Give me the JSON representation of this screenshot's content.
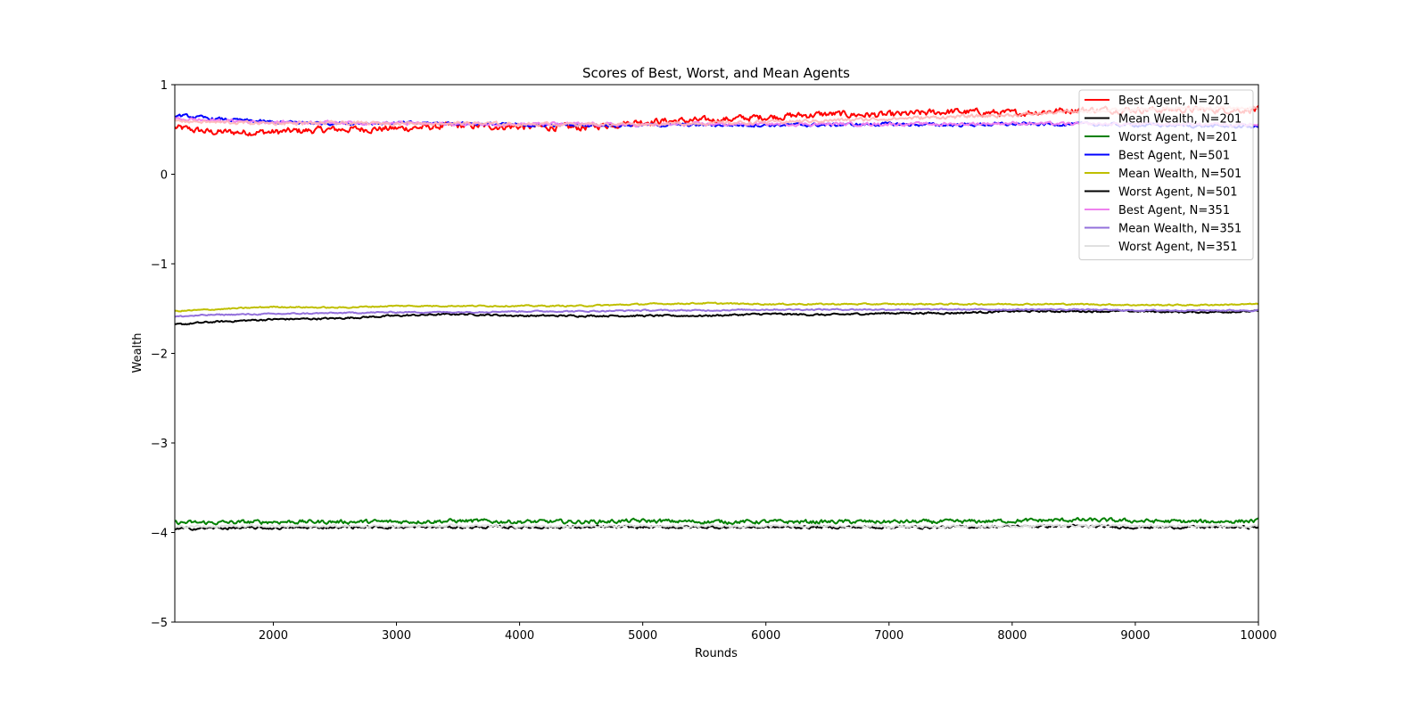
{
  "chart_data": {
    "type": "line",
    "title": "Scores of Best, Worst, and Mean Agents",
    "xlabel": "Rounds",
    "ylabel": "Wealth",
    "xlim": [
      1200,
      10000
    ],
    "ylim": [
      -5,
      1
    ],
    "xticks": [
      2000,
      3000,
      4000,
      5000,
      6000,
      7000,
      8000,
      9000,
      10000
    ],
    "yticks": [
      1,
      0,
      -1,
      -2,
      -3,
      -4,
      -5
    ],
    "ytick_labels": [
      "1",
      "0",
      "−1",
      "−2",
      "−3",
      "−4",
      "−5"
    ],
    "grid": false,
    "legend_position": "top-right",
    "x_knots": [
      1200,
      1500,
      2000,
      2500,
      3000,
      3500,
      4000,
      4500,
      5000,
      5500,
      6000,
      6500,
      7000,
      7500,
      8000,
      8500,
      9000,
      9500,
      10000
    ],
    "series": [
      {
        "name": "Best Agent, N=201",
        "color": "#ff0000",
        "noise": 0.03,
        "values": [
          0.52,
          0.47,
          0.47,
          0.5,
          0.51,
          0.54,
          0.53,
          0.52,
          0.59,
          0.6,
          0.64,
          0.67,
          0.66,
          0.7,
          0.68,
          0.72,
          0.72,
          0.72,
          0.72
        ]
      },
      {
        "name": "Mean Wealth, N=201",
        "color": "#000000",
        "noise": 0.008,
        "values": [
          -1.68,
          -1.65,
          -1.62,
          -1.61,
          -1.58,
          -1.56,
          -1.58,
          -1.58,
          -1.58,
          -1.58,
          -1.56,
          -1.57,
          -1.55,
          -1.55,
          -1.53,
          -1.53,
          -1.53,
          -1.54,
          -1.53
        ]
      },
      {
        "name": "Worst Agent, N=201",
        "color": "#008000",
        "noise": 0.018,
        "values": [
          -3.89,
          -3.89,
          -3.88,
          -3.88,
          -3.88,
          -3.87,
          -3.88,
          -3.88,
          -3.87,
          -3.88,
          -3.88,
          -3.88,
          -3.88,
          -3.88,
          -3.87,
          -3.86,
          -3.87,
          -3.88,
          -3.87
        ]
      },
      {
        "name": "Best Agent, N=501",
        "color": "#0000ff",
        "noise": 0.015,
        "values": [
          0.66,
          0.62,
          0.58,
          0.57,
          0.57,
          0.57,
          0.55,
          0.55,
          0.55,
          0.55,
          0.55,
          0.55,
          0.56,
          0.55,
          0.56,
          0.56,
          0.55,
          0.54,
          0.53
        ]
      },
      {
        "name": "Mean Wealth, N=501",
        "color": "#bfbf00",
        "noise": 0.006,
        "values": [
          -1.53,
          -1.51,
          -1.48,
          -1.49,
          -1.47,
          -1.47,
          -1.47,
          -1.47,
          -1.45,
          -1.44,
          -1.45,
          -1.45,
          -1.45,
          -1.45,
          -1.45,
          -1.45,
          -1.46,
          -1.46,
          -1.45
        ]
      },
      {
        "name": "Worst Agent, N=501",
        "color": "#000000",
        "noise": 0.012,
        "values": [
          -3.96,
          -3.95,
          -3.95,
          -3.94,
          -3.94,
          -3.94,
          -3.94,
          -3.94,
          -3.94,
          -3.94,
          -3.94,
          -3.94,
          -3.94,
          -3.94,
          -3.93,
          -3.93,
          -3.94,
          -3.94,
          -3.94
        ]
      },
      {
        "name": "Best Agent, N=351",
        "color": "#ee82ee",
        "noise": 0.015,
        "values": [
          0.62,
          0.6,
          0.58,
          0.58,
          0.57,
          0.56,
          0.56,
          0.56,
          0.55,
          0.56,
          0.56,
          0.56,
          0.56,
          0.56,
          0.57,
          0.56,
          0.56,
          0.56,
          0.56
        ]
      },
      {
        "name": "Mean Wealth, N=351",
        "color": "#9370db",
        "noise": 0.006,
        "values": [
          -1.59,
          -1.57,
          -1.56,
          -1.55,
          -1.54,
          -1.54,
          -1.53,
          -1.53,
          -1.52,
          -1.52,
          -1.51,
          -1.51,
          -1.51,
          -1.51,
          -1.51,
          -1.51,
          -1.52,
          -1.52,
          -1.52
        ]
      },
      {
        "name": "Worst Agent, N=351",
        "color": "#e0e0e0",
        "noise": 0.012,
        "values": [
          -3.94,
          -3.93,
          -3.93,
          -3.93,
          -3.93,
          -3.93,
          -3.93,
          -3.93,
          -3.93,
          -3.93,
          -3.93,
          -3.93,
          -3.93,
          -3.93,
          -3.93,
          -3.92,
          -3.93,
          -3.93,
          -3.93
        ]
      }
    ],
    "overlay": {
      "name": "Worst Agent, N=351 (pink)",
      "color": "#ffb6b6",
      "noise": 0.015,
      "values": [
        0.6,
        0.58,
        0.57,
        0.57,
        0.57,
        0.57,
        0.56,
        0.56,
        0.56,
        0.57,
        0.58,
        0.6,
        0.62,
        0.64,
        0.66,
        0.7,
        0.72,
        0.74,
        0.74
      ]
    }
  }
}
